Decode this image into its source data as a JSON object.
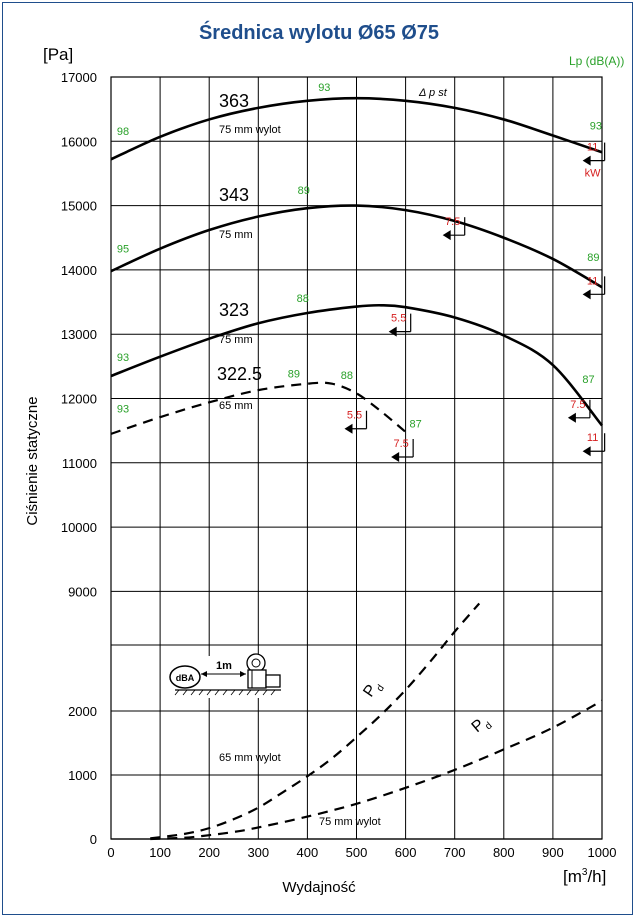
{
  "chart_data": {
    "type": "line",
    "title": "Średnica wylotu Ø65 Ø75",
    "xlabel": "Wydajność",
    "ylabel": "Ciśnienie statyczne",
    "xunit": "[m³/h]",
    "yunit": "[Pa]",
    "noise_label": "Lp (dB(A))",
    "xlim": [
      0,
      1000
    ],
    "xticks": [
      0,
      100,
      200,
      300,
      400,
      500,
      600,
      700,
      800,
      900,
      1000
    ],
    "yticks_upper": [
      9000,
      10000,
      11000,
      12000,
      13000,
      14000,
      15000,
      16000,
      17000
    ],
    "yticks_lower": [
      0,
      1000,
      2000
    ],
    "grid": true,
    "series": [
      {
        "name": "363",
        "subtitle": "75 mm wylot",
        "style": "solid",
        "x": [
          0,
          100,
          200,
          300,
          400,
          500,
          600,
          700,
          800,
          900,
          1000
        ],
        "y": [
          15720,
          16070,
          16340,
          16520,
          16630,
          16670,
          16630,
          16520,
          16340,
          16090,
          15830
        ]
      },
      {
        "name": "343",
        "subtitle": "75 mm",
        "style": "solid",
        "x": [
          0,
          100,
          200,
          300,
          400,
          500,
          600,
          700,
          800,
          900,
          1000
        ],
        "y": [
          13980,
          14330,
          14620,
          14830,
          14960,
          15000,
          14930,
          14760,
          14500,
          14170,
          13730
        ]
      },
      {
        "name": "323",
        "subtitle": "75 mm",
        "style": "solid",
        "x": [
          0,
          100,
          200,
          300,
          400,
          500,
          550,
          600,
          700,
          800,
          900,
          1000
        ],
        "y": [
          12350,
          12650,
          12930,
          13170,
          13330,
          13430,
          13450,
          13420,
          13260,
          12980,
          12520,
          11580
        ]
      },
      {
        "name": "322.5",
        "subtitle": "65 mm",
        "style": "dashed",
        "x": [
          0,
          100,
          200,
          300,
          400,
          450,
          500,
          550,
          600
        ],
        "y": [
          11450,
          11710,
          11940,
          12130,
          12230,
          12230,
          12080,
          11800,
          11480
        ]
      },
      {
        "name": "Pd",
        "subtitle": "65 mm wylot",
        "style": "dashed",
        "scale": "lower",
        "x": [
          80,
          150,
          200,
          250,
          300,
          350,
          400,
          450,
          500,
          550,
          600,
          650,
          700,
          750
        ],
        "y": [
          10,
          80,
          170,
          310,
          490,
          730,
          980,
          1260,
          1590,
          1940,
          2330,
          2770,
          3240,
          3680
        ]
      },
      {
        "name": "Pd",
        "subtitle": "75 mm wylot",
        "style": "dashed",
        "scale": "lower",
        "x": [
          80,
          150,
          200,
          250,
          300,
          400,
          500,
          600,
          700,
          800,
          900,
          1000
        ],
        "y": [
          0,
          20,
          60,
          110,
          180,
          350,
          550,
          800,
          1080,
          1400,
          1740,
          2160
        ]
      }
    ],
    "annotations": {
      "delta_p_label": "Δ p st",
      "kw_unit": "kW",
      "noise_levels": [
        {
          "text": "98",
          "x": 12,
          "y": 16100
        },
        {
          "text": "93",
          "x": 422,
          "y": 16780
        },
        {
          "text": "93",
          "x": 975,
          "y": 16180
        },
        {
          "text": "95",
          "x": 12,
          "y": 14270
        },
        {
          "text": "89",
          "x": 380,
          "y": 15180
        },
        {
          "text": "89",
          "x": 970,
          "y": 14140
        },
        {
          "text": "93",
          "x": 12,
          "y": 12580
        },
        {
          "text": "88",
          "x": 378,
          "y": 13500
        },
        {
          "text": "87",
          "x": 960,
          "y": 12240
        },
        {
          "text": "89",
          "x": 360,
          "y": 12330
        },
        {
          "text": "88",
          "x": 468,
          "y": 12300
        },
        {
          "text": "93",
          "x": 12,
          "y": 11780
        },
        {
          "text": "87",
          "x": 608,
          "y": 11550
        }
      ],
      "power_marks": [
        {
          "text": "11",
          "x": 985,
          "y": 15700
        },
        {
          "text": "7.5",
          "x": 700,
          "y": 14540
        },
        {
          "text": "11",
          "x": 985,
          "y": 13620
        },
        {
          "text": "5.5",
          "x": 590,
          "y": 13040
        },
        {
          "text": "5.5",
          "x": 500,
          "y": 11530
        },
        {
          "text": "7.5",
          "x": 955,
          "y": 11700
        },
        {
          "text": "7.5",
          "x": 595,
          "y": 11090
        },
        {
          "text": "11",
          "x": 985,
          "y": 11180
        }
      ]
    },
    "inset": {
      "dba": "dBA",
      "distance": "1m"
    }
  }
}
